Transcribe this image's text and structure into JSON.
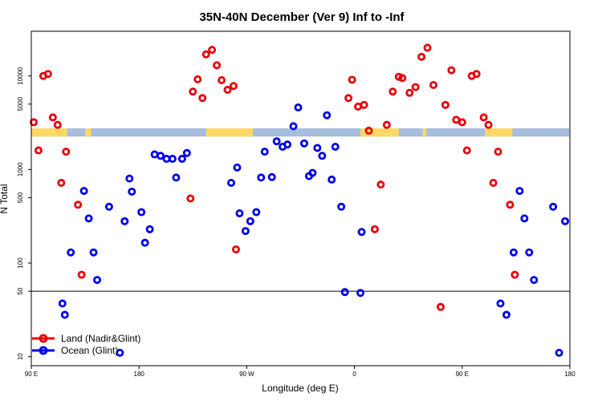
{
  "chart_data": {
    "type": "scatter",
    "title": "35N-40N December (Ver 9)   Inf to -Inf",
    "xlabel": "Longitude (deg E)",
    "ylabel": "N Total",
    "y_scale": "log",
    "xlim": [
      -180,
      270
    ],
    "ylim": [
      8,
      30000
    ],
    "reference_line": 50,
    "x_ticks": [
      {
        "value": -180,
        "label": "90 E"
      },
      {
        "value": -90,
        "label": "180"
      },
      {
        "value": 0,
        "label": "90 W"
      },
      {
        "value": 90,
        "label": "0"
      },
      {
        "value": 180,
        "label": "90 E"
      },
      {
        "value": 270,
        "label": "180"
      }
    ],
    "y_ticks": [
      {
        "value": 10,
        "label": "10"
      },
      {
        "value": 50,
        "label": "50"
      },
      {
        "value": 100,
        "label": "100"
      },
      {
        "value": 500,
        "label": "500"
      },
      {
        "value": 1000,
        "label": "1000"
      },
      {
        "value": 5000,
        "label": "5000"
      },
      {
        "value": 10000,
        "label": "10000"
      }
    ],
    "land_ocean_strip": {
      "y_range": [
        2250,
        2750
      ],
      "land_color": "#FFD966",
      "ocean_color": "#A6BDDB",
      "land_segments": [
        [
          -180,
          -150
        ],
        [
          -135,
          -130
        ],
        [
          -34,
          5
        ],
        [
          95,
          127
        ],
        [
          147,
          150
        ],
        [
          199,
          222
        ]
      ]
    },
    "series": [
      {
        "name": "Land (Nadir&Glint)",
        "color": "#E8000B",
        "points": [
          [
            -178,
            3200
          ],
          [
            -174,
            1600
          ],
          [
            -170,
            10000
          ],
          [
            -166,
            10500
          ],
          [
            -162,
            3600
          ],
          [
            -158,
            3000
          ],
          [
            -155,
            720
          ],
          [
            -151,
            1550
          ],
          [
            -141,
            420
          ],
          [
            -138,
            75
          ],
          [
            -47,
            490
          ],
          [
            -45,
            6800
          ],
          [
            -41,
            9200
          ],
          [
            -37,
            5800
          ],
          [
            -34,
            17000
          ],
          [
            -29,
            19000
          ],
          [
            -25,
            13000
          ],
          [
            -21,
            9000
          ],
          [
            -16,
            7100
          ],
          [
            -11,
            7800
          ],
          [
            -9,
            140
          ],
          [
            85,
            5800
          ],
          [
            88,
            9100
          ],
          [
            93,
            4700
          ],
          [
            98,
            4900
          ],
          [
            102,
            2600
          ],
          [
            107,
            230
          ],
          [
            112,
            690
          ],
          [
            117,
            3000
          ],
          [
            122,
            6800
          ],
          [
            127,
            9800
          ],
          [
            130,
            9500
          ],
          [
            136,
            6600
          ],
          [
            141,
            7600
          ],
          [
            146,
            16000
          ],
          [
            151,
            20000
          ],
          [
            156,
            8000
          ],
          [
            162,
            34
          ],
          [
            166,
            4900
          ],
          [
            171,
            11500
          ],
          [
            175,
            3400
          ],
          [
            180,
            3200
          ],
          [
            184,
            1600
          ],
          [
            188,
            10000
          ],
          [
            192,
            10500
          ],
          [
            198,
            3600
          ],
          [
            202,
            3000
          ],
          [
            206,
            720
          ],
          [
            210,
            1550
          ],
          [
            220,
            420
          ],
          [
            224,
            75
          ]
        ]
      },
      {
        "name": "Ocean (Glint)",
        "color": "#0000E6",
        "points": [
          [
            -154,
            37
          ],
          [
            -152,
            28
          ],
          [
            -147,
            130
          ],
          [
            -136,
            590
          ],
          [
            -132,
            300
          ],
          [
            -128,
            130
          ],
          [
            -125,
            66
          ],
          [
            -115,
            400
          ],
          [
            -102,
            280
          ],
          [
            -106,
            11
          ],
          [
            -98,
            800
          ],
          [
            -96,
            580
          ],
          [
            -88,
            350
          ],
          [
            -85,
            165
          ],
          [
            -81,
            230
          ],
          [
            -77,
            1450
          ],
          [
            -72,
            1400
          ],
          [
            -67,
            1300
          ],
          [
            -62,
            1300
          ],
          [
            -59,
            820
          ],
          [
            -54,
            1300
          ],
          [
            -50,
            1500
          ],
          [
            -8,
            1050
          ],
          [
            -13,
            720
          ],
          [
            -6,
            340
          ],
          [
            -1,
            220
          ],
          [
            3,
            280
          ],
          [
            8,
            350
          ],
          [
            12,
            820
          ],
          [
            15,
            1550
          ],
          [
            21,
            830
          ],
          [
            25,
            2000
          ],
          [
            30,
            1750
          ],
          [
            34,
            1850
          ],
          [
            39,
            2900
          ],
          [
            43,
            4600
          ],
          [
            48,
            1900
          ],
          [
            52,
            850
          ],
          [
            55,
            920
          ],
          [
            59,
            1700
          ],
          [
            63,
            1400
          ],
          [
            67,
            3800
          ],
          [
            71,
            780
          ],
          [
            74,
            1750
          ],
          [
            79,
            400
          ],
          [
            82,
            49
          ],
          [
            95,
            48
          ],
          [
            96,
            215
          ],
          [
            212,
            37
          ],
          [
            217,
            28
          ],
          [
            223,
            130
          ],
          [
            228,
            590
          ],
          [
            232,
            300
          ],
          [
            236,
            130
          ],
          [
            240,
            66
          ],
          [
            256,
            400
          ],
          [
            261,
            11
          ],
          [
            266,
            280
          ]
        ]
      }
    ],
    "legend": {
      "position": "bottom-left",
      "entries": [
        "Land (Nadir&Glint)",
        "Ocean (Glint)"
      ]
    }
  }
}
